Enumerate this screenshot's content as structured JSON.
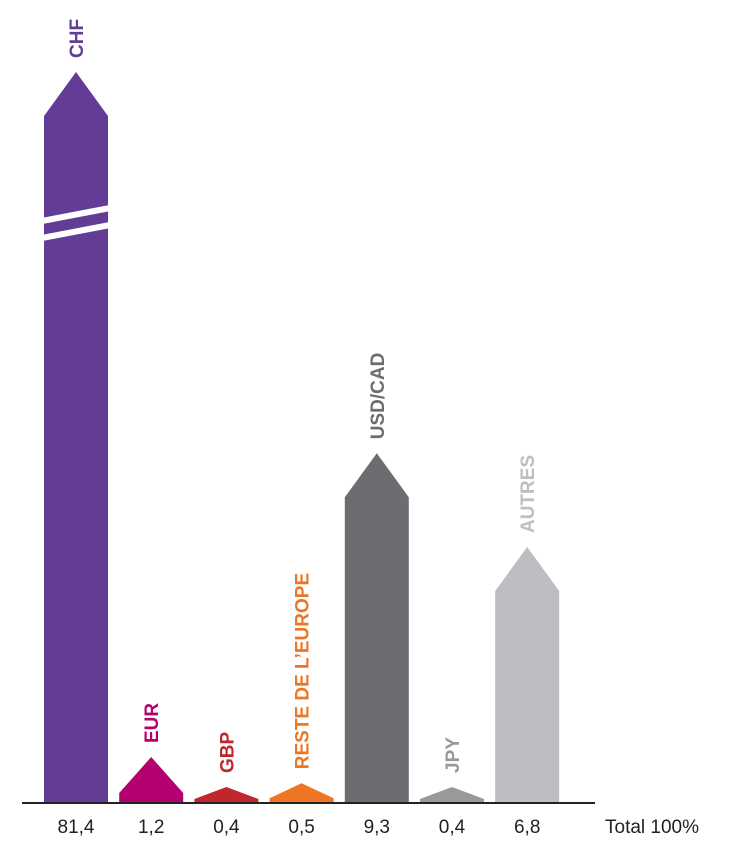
{
  "chart_data": {
    "type": "bar",
    "categories": [
      "CHF",
      "EUR",
      "GBP",
      "RESTE DE L’EUROPE",
      "USD/CAD",
      "JPY",
      "AUTRES"
    ],
    "values": [
      81.4,
      1.2,
      0.4,
      0.5,
      9.3,
      0.4,
      6.8
    ],
    "value_labels": [
      "81,4",
      "1,2",
      "0,4",
      "0,5",
      "9,3",
      "0,4",
      "6,8"
    ],
    "colors": [
      "#633c96",
      "#b5006f",
      "#c0272d",
      "#ee7523",
      "#6b6d70",
      "#98999b",
      "#bdbec1"
    ],
    "total_label": "Total 100%",
    "axis_break": "CHF",
    "title": "",
    "xlabel": "",
    "ylabel": ""
  }
}
